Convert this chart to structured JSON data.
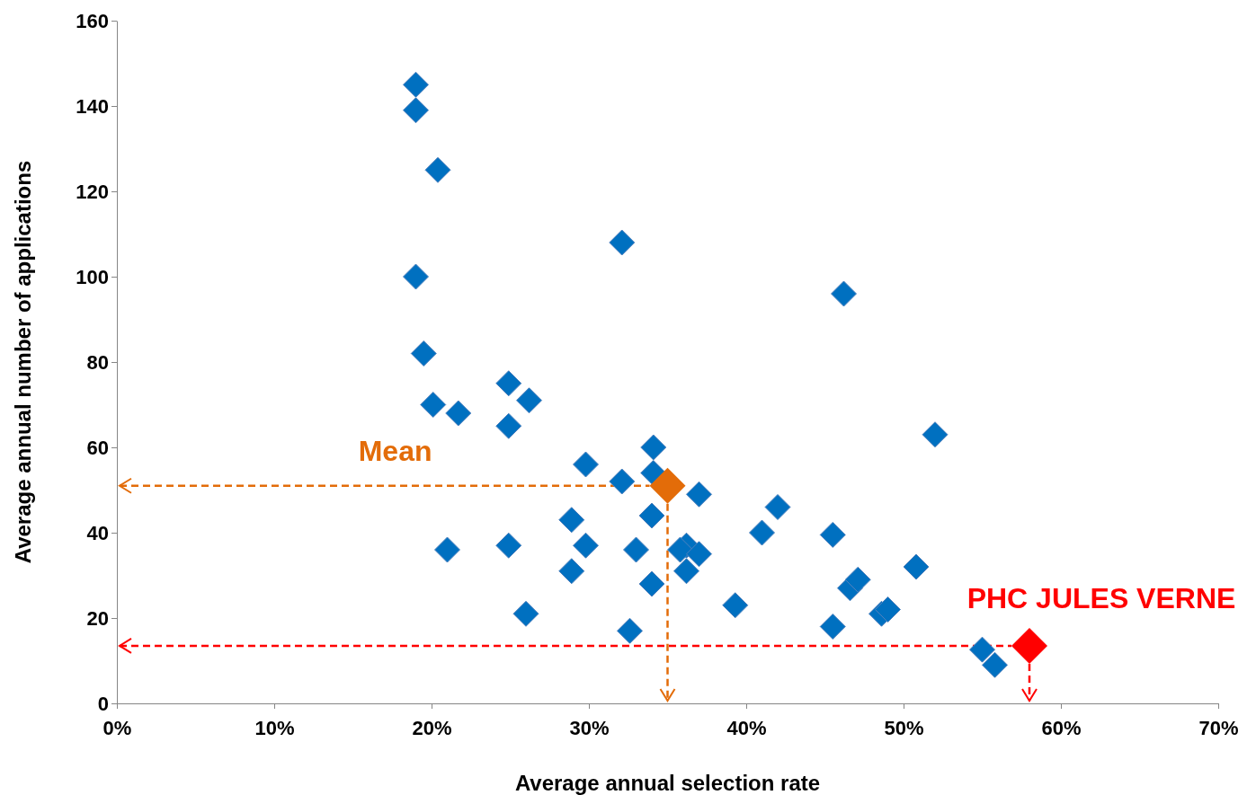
{
  "chart_data": {
    "type": "scatter",
    "xlabel": "Average annual selection rate",
    "ylabel": "Average annual number of applications",
    "xlim": [
      0,
      70
    ],
    "ylim": [
      0,
      160
    ],
    "xticks": [
      {
        "value": 0,
        "label": "0%"
      },
      {
        "value": 10,
        "label": "10%"
      },
      {
        "value": 20,
        "label": "20%"
      },
      {
        "value": 30,
        "label": "30%"
      },
      {
        "value": 40,
        "label": "40%"
      },
      {
        "value": 50,
        "label": "50%"
      },
      {
        "value": 60,
        "label": "60%"
      },
      {
        "value": 70,
        "label": "70%"
      }
    ],
    "yticks": [
      0,
      20,
      40,
      60,
      80,
      100,
      120,
      140,
      160
    ],
    "marker": "diamond",
    "grid": false,
    "ref_lines": [
      {
        "axis": "y",
        "value": 51,
        "color": "#e36c09",
        "line_style": "dashed"
      },
      {
        "axis": "x",
        "value": 35,
        "color": "#e36c09",
        "line_style": "dashed"
      },
      {
        "axis": "y",
        "value": 13.5,
        "color": "#ff0000",
        "line_style": "dashed"
      }
    ],
    "series": [
      {
        "color": "#0070c0",
        "x": [
          19,
          19,
          20.4,
          19,
          19.5,
          20.1,
          21.7,
          24.9,
          26.2,
          24.9,
          32.1,
          46.2,
          52,
          29.8,
          32.1,
          34.1,
          34.1,
          37,
          42,
          34,
          28.9,
          21,
          24.9,
          29.8,
          33,
          36.2,
          35.8,
          37,
          36.2,
          41,
          45.5,
          28.9,
          34,
          26,
          32.6,
          39.3,
          45.5,
          46.6,
          47.1,
          48.6,
          49,
          50.8,
          55,
          55.8
        ],
        "values": [
          145,
          139,
          125,
          100,
          82,
          70,
          68,
          75,
          71,
          65,
          108,
          96,
          63,
          56,
          52,
          60,
          54,
          49,
          46,
          44,
          43,
          36,
          37,
          37,
          36,
          37,
          36,
          35,
          31,
          40,
          39.5,
          31,
          28,
          21,
          17,
          23,
          18,
          27,
          29,
          21,
          22,
          32,
          12.6,
          9
        ]
      },
      {
        "name": "Mean",
        "color": "#e36c09",
        "x": [
          35
        ],
        "values": [
          51
        ]
      },
      {
        "name": "PHC JULES VERNE",
        "color": "#ff0000",
        "x": [
          58
        ],
        "values": [
          13.5
        ]
      }
    ]
  }
}
